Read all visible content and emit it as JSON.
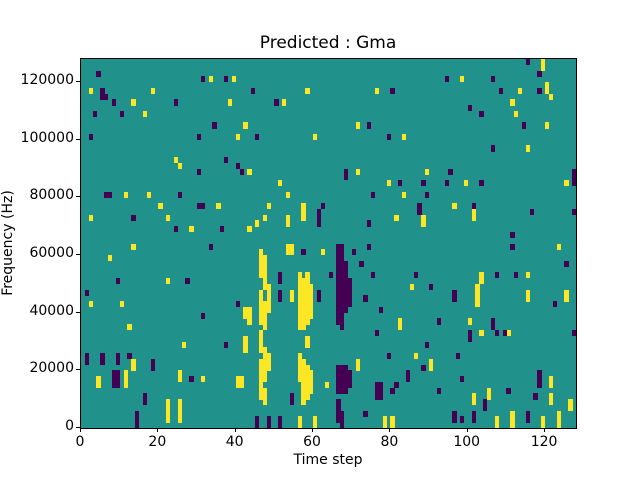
{
  "title": "Predicted : Gma",
  "chart_data": {
    "type": "heatmap",
    "title": "Predicted : Gma",
    "xlabel": "Time step",
    "ylabel": "Frequency (Hz)",
    "xlim": [
      0,
      128
    ],
    "ylim": [
      0,
      128000
    ],
    "grid": {
      "cols": 128,
      "rows": 64,
      "hz_per_row": 2000,
      "gridlines": false
    },
    "legend": "none",
    "xticks": [
      0,
      20,
      40,
      60,
      80,
      100,
      120
    ],
    "xtick_labels": [
      "0",
      "20",
      "40",
      "60",
      "80",
      "100",
      "120"
    ],
    "yticks": [
      0,
      20000,
      40000,
      60000,
      80000,
      100000,
      120000
    ],
    "ytick_labels": [
      "0",
      "20000",
      "40000",
      "60000",
      "80000",
      "100000",
      "120000"
    ],
    "colors": {
      "mid_background": "#21918c",
      "high": "#fde725",
      "low": "#440154",
      "axes": "#000000",
      "figure_background": "#ffffff"
    },
    "cells_format": "[time_step, freq_bin_start, freq_bin_end] with freq_bin = 2000 Hz per bin",
    "cells": {
      "high": [
        [
          2,
          58,
          58
        ],
        [
          18,
          58,
          58
        ],
        [
          13,
          56,
          56
        ],
        [
          38,
          56,
          56
        ],
        [
          16,
          54,
          54
        ],
        [
          33,
          60,
          60
        ],
        [
          39,
          60,
          60
        ],
        [
          42,
          52,
          52
        ],
        [
          40,
          50,
          50
        ],
        [
          24,
          46,
          46
        ],
        [
          25,
          45,
          45
        ],
        [
          11,
          40,
          40
        ],
        [
          17,
          40,
          40
        ],
        [
          20,
          38,
          38
        ],
        [
          35,
          38,
          38
        ],
        [
          2,
          36,
          36
        ],
        [
          22,
          36,
          36
        ],
        [
          28,
          34,
          34
        ],
        [
          52,
          56,
          56
        ],
        [
          58,
          58,
          58
        ],
        [
          76,
          58,
          58
        ],
        [
          71,
          52,
          52
        ],
        [
          60,
          50,
          50
        ],
        [
          83,
          50,
          50
        ],
        [
          43,
          44,
          44
        ],
        [
          71,
          44,
          44
        ],
        [
          51,
          42,
          42
        ],
        [
          79,
          42,
          42
        ],
        [
          53,
          40,
          40
        ],
        [
          83,
          40,
          40
        ],
        [
          48,
          38,
          38
        ],
        [
          57,
          36,
          38
        ],
        [
          47,
          36,
          36
        ],
        [
          53,
          35,
          36
        ],
        [
          81,
          36,
          36
        ],
        [
          45,
          35,
          35
        ],
        [
          43,
          34,
          34
        ],
        [
          119,
          62,
          63
        ],
        [
          120,
          58,
          59
        ],
        [
          98,
          60,
          60
        ],
        [
          121,
          57,
          57
        ],
        [
          113,
          58,
          58
        ],
        [
          111,
          56,
          56
        ],
        [
          112,
          54,
          54
        ],
        [
          120,
          52,
          52
        ],
        [
          115,
          48,
          48
        ],
        [
          89,
          44,
          44
        ],
        [
          99,
          42,
          42
        ],
        [
          125,
          42,
          42
        ],
        [
          96,
          38,
          38
        ],
        [
          101,
          36,
          37
        ],
        [
          88,
          35,
          36
        ],
        [
          13,
          31,
          31
        ],
        [
          7,
          29,
          29
        ],
        [
          22,
          25,
          25
        ],
        [
          2,
          21,
          21
        ],
        [
          10,
          21,
          21
        ],
        [
          12,
          17,
          17
        ],
        [
          42,
          19,
          20
        ],
        [
          42,
          13,
          15
        ],
        [
          26,
          14,
          14
        ],
        [
          13,
          10,
          11
        ],
        [
          11,
          7,
          9
        ],
        [
          4,
          7,
          8
        ],
        [
          25,
          8,
          9
        ],
        [
          31,
          8,
          8
        ],
        [
          40,
          7,
          8
        ],
        [
          41,
          7,
          8
        ],
        [
          22,
          1,
          4
        ],
        [
          25,
          1,
          4
        ],
        [
          43,
          18,
          20
        ],
        [
          46,
          26,
          30
        ],
        [
          46,
          18,
          23
        ],
        [
          46,
          13,
          16
        ],
        [
          46,
          5,
          11
        ],
        [
          47,
          24,
          29
        ],
        [
          47,
          17,
          21
        ],
        [
          47,
          8,
          13
        ],
        [
          47,
          4,
          6
        ],
        [
          48,
          20,
          24
        ],
        [
          48,
          10,
          12
        ],
        [
          53,
          30,
          31
        ],
        [
          54,
          30,
          31
        ],
        [
          62,
          30,
          30
        ],
        [
          54,
          22,
          23
        ],
        [
          56,
          17,
          26
        ],
        [
          56,
          8,
          12
        ],
        [
          56,
          0,
          1
        ],
        [
          57,
          17,
          25
        ],
        [
          57,
          4,
          11
        ],
        [
          58,
          18,
          26
        ],
        [
          58,
          14,
          15
        ],
        [
          58,
          5,
          10
        ],
        [
          59,
          19,
          24
        ],
        [
          59,
          6,
          9
        ],
        [
          63,
          7,
          7
        ],
        [
          71,
          10,
          11
        ],
        [
          82,
          17,
          18
        ],
        [
          60,
          0,
          1
        ],
        [
          78,
          0,
          1
        ],
        [
          80,
          0,
          1
        ],
        [
          123,
          31,
          31
        ],
        [
          85,
          24,
          24
        ],
        [
          103,
          25,
          26
        ],
        [
          115,
          26,
          26
        ],
        [
          102,
          21,
          24
        ],
        [
          115,
          22,
          23
        ],
        [
          125,
          22,
          23
        ],
        [
          100,
          18,
          18
        ],
        [
          103,
          16,
          16
        ],
        [
          110,
          16,
          16
        ],
        [
          86,
          12,
          12
        ],
        [
          90,
          10,
          11
        ],
        [
          121,
          7,
          8
        ],
        [
          105,
          5,
          6
        ],
        [
          101,
          4,
          5
        ],
        [
          121,
          4,
          5
        ],
        [
          111,
          0,
          2
        ],
        [
          119,
          0,
          1
        ],
        [
          107,
          0,
          1
        ],
        [
          126,
          3,
          4
        ],
        [
          123,
          0,
          2
        ]
      ],
      "low": [
        [
          4,
          61,
          61
        ],
        [
          5,
          57,
          58
        ],
        [
          6,
          57,
          57
        ],
        [
          8,
          56,
          56
        ],
        [
          3,
          54,
          54
        ],
        [
          10,
          54,
          54
        ],
        [
          24,
          56,
          56
        ],
        [
          2,
          50,
          50
        ],
        [
          34,
          52,
          52
        ],
        [
          30,
          50,
          50
        ],
        [
          31,
          60,
          60
        ],
        [
          37,
          60,
          60
        ],
        [
          37,
          46,
          46
        ],
        [
          30,
          44,
          44
        ],
        [
          40,
          45,
          45
        ],
        [
          41,
          44,
          44
        ],
        [
          6,
          40,
          40
        ],
        [
          7,
          40,
          40
        ],
        [
          25,
          40,
          40
        ],
        [
          30,
          38,
          38
        ],
        [
          31,
          38,
          38
        ],
        [
          13,
          36,
          36
        ],
        [
          24,
          34,
          34
        ],
        [
          36,
          34,
          34
        ],
        [
          44,
          58,
          58
        ],
        [
          50,
          56,
          56
        ],
        [
          80,
          58,
          58
        ],
        [
          74,
          52,
          52
        ],
        [
          45,
          50,
          50
        ],
        [
          79,
          50,
          50
        ],
        [
          68,
          43,
          44
        ],
        [
          82,
          42,
          42
        ],
        [
          75,
          40,
          40
        ],
        [
          62,
          38,
          38
        ],
        [
          61,
          35,
          37
        ],
        [
          74,
          35,
          35
        ],
        [
          115,
          63,
          63
        ],
        [
          118,
          61,
          61
        ],
        [
          94,
          60,
          60
        ],
        [
          106,
          60,
          60
        ],
        [
          108,
          58,
          58
        ],
        [
          118,
          58,
          58
        ],
        [
          100,
          55,
          55
        ],
        [
          103,
          54,
          54
        ],
        [
          114,
          52,
          52
        ],
        [
          106,
          48,
          48
        ],
        [
          95,
          44,
          44
        ],
        [
          88,
          42,
          42
        ],
        [
          94,
          42,
          42
        ],
        [
          103,
          42,
          42
        ],
        [
          89,
          40,
          40
        ],
        [
          87,
          37,
          38
        ],
        [
          101,
          38,
          38
        ],
        [
          116,
          37,
          37
        ],
        [
          127,
          42,
          44
        ],
        [
          127,
          37,
          37
        ],
        [
          111,
          33,
          33
        ],
        [
          33,
          31,
          31
        ],
        [
          9,
          25,
          25
        ],
        [
          27,
          25,
          25
        ],
        [
          1,
          23,
          23
        ],
        [
          40,
          21,
          21
        ],
        [
          31,
          19,
          19
        ],
        [
          37,
          14,
          14
        ],
        [
          1,
          11,
          12
        ],
        [
          5,
          11,
          12
        ],
        [
          9,
          11,
          12
        ],
        [
          12,
          12,
          12
        ],
        [
          18,
          10,
          11
        ],
        [
          8,
          7,
          9
        ],
        [
          9,
          7,
          9
        ],
        [
          28,
          8,
          8
        ],
        [
          16,
          4,
          5
        ],
        [
          14,
          0,
          2
        ],
        [
          57,
          30,
          30
        ],
        [
          70,
          30,
          30
        ],
        [
          74,
          31,
          31
        ],
        [
          51,
          25,
          26
        ],
        [
          51,
          22,
          23
        ],
        [
          61,
          22,
          23
        ],
        [
          64,
          26,
          26
        ],
        [
          72,
          28,
          28
        ],
        [
          73,
          22,
          22
        ],
        [
          75,
          26,
          26
        ],
        [
          77,
          20,
          20
        ],
        [
          76,
          16,
          16
        ],
        [
          79,
          12,
          12
        ],
        [
          54,
          4,
          5
        ],
        [
          45,
          0,
          1
        ],
        [
          48,
          0,
          1
        ],
        [
          51,
          0,
          1
        ],
        [
          66,
          18,
          31
        ],
        [
          66,
          6,
          10
        ],
        [
          66,
          1,
          4
        ],
        [
          67,
          17,
          31
        ],
        [
          67,
          6,
          10
        ],
        [
          67,
          0,
          2
        ],
        [
          68,
          20,
          28
        ],
        [
          68,
          6,
          10
        ],
        [
          69,
          21,
          25
        ],
        [
          69,
          7,
          9
        ],
        [
          73,
          2,
          2
        ],
        [
          76,
          5,
          7
        ],
        [
          77,
          5,
          7
        ],
        [
          80,
          6,
          6
        ],
        [
          81,
          7,
          7
        ],
        [
          84,
          8,
          9
        ],
        [
          111,
          31,
          31
        ],
        [
          125,
          28,
          28
        ],
        [
          86,
          26,
          26
        ],
        [
          90,
          24,
          24
        ],
        [
          107,
          26,
          26
        ],
        [
          112,
          26,
          26
        ],
        [
          96,
          22,
          23
        ],
        [
          122,
          21,
          21
        ],
        [
          92,
          18,
          18
        ],
        [
          100,
          15,
          16
        ],
        [
          106,
          17,
          18
        ],
        [
          107,
          16,
          16
        ],
        [
          109,
          16,
          16
        ],
        [
          127,
          16,
          16
        ],
        [
          89,
          14,
          14
        ],
        [
          97,
          12,
          12
        ],
        [
          88,
          10,
          10
        ],
        [
          98,
          8,
          8
        ],
        [
          118,
          7,
          9
        ],
        [
          92,
          6,
          6
        ],
        [
          110,
          6,
          6
        ],
        [
          117,
          5,
          5
        ],
        [
          104,
          3,
          4
        ],
        [
          96,
          1,
          2
        ],
        [
          98,
          1,
          1
        ],
        [
          101,
          1,
          2
        ],
        [
          115,
          1,
          2
        ]
      ]
    }
  }
}
